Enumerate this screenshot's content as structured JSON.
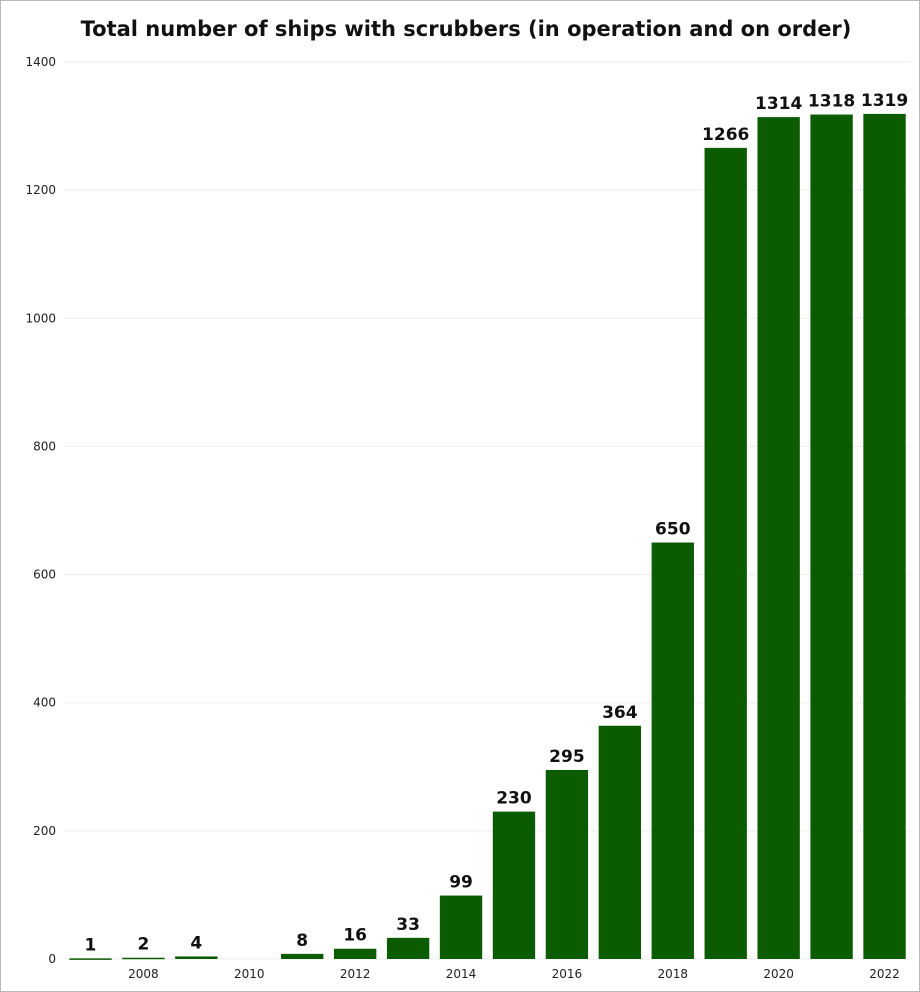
{
  "chart_data": {
    "type": "bar",
    "title": "Total number of ships with scrubbers (in operation and on order)",
    "xlabel": "",
    "ylabel": "",
    "categories": [
      "2007",
      "2008",
      "2009",
      "2010",
      "2011",
      "2012",
      "2013",
      "2014",
      "2015",
      "2016",
      "2017",
      "2018",
      "2019",
      "2020",
      "2021",
      "2022"
    ],
    "values": [
      1,
      2,
      4,
      0,
      8,
      16,
      33,
      99,
      230,
      295,
      364,
      650,
      1266,
      1314,
      1318,
      1319
    ],
    "data_labels": [
      "1",
      "2",
      "4",
      "",
      "8",
      "16",
      "33",
      "99",
      "230",
      "295",
      "364",
      "650",
      "1266",
      "1314",
      "1318",
      "1319"
    ],
    "x_tick_labels": [
      "",
      "2008",
      "",
      "2010",
      "",
      "2012",
      "",
      "2014",
      "",
      "2016",
      "",
      "2018",
      "",
      "2020",
      "",
      "2022"
    ],
    "y_ticks": [
      0,
      200,
      400,
      600,
      800,
      1000,
      1200,
      1400
    ],
    "ylim": [
      0,
      1400
    ],
    "grid": true,
    "legend": "none",
    "bar_color": "#0b5c00"
  }
}
